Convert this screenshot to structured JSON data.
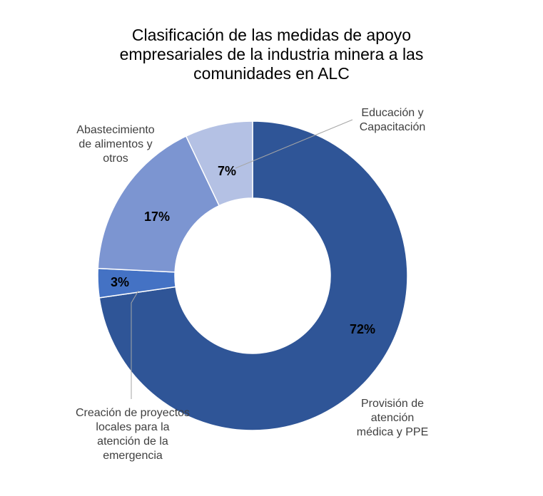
{
  "chart_data": {
    "type": "pie",
    "title_lines": [
      "Clasificación de las medidas de apoyo",
      "empresariales de la industria minera a las",
      "comunidades en ALC"
    ],
    "slices": [
      {
        "label_lines": [
          "Provisión de",
          "atención",
          "médica y PPE"
        ],
        "value": 72,
        "value_label": "72%",
        "color": "#2F5597"
      },
      {
        "label_lines": [
          "Creación de proyectos",
          "locales para la",
          "atención de la",
          "emergencia"
        ],
        "value": 3,
        "value_label": "3%",
        "color": "#4472C4"
      },
      {
        "label_lines": [
          "Abastecimiento",
          "de alimentos y",
          "otros"
        ],
        "value": 17,
        "value_label": "17%",
        "color": "#7C95D1"
      },
      {
        "label_lines": [
          "Educación y",
          "Capacitación"
        ],
        "value": 7,
        "value_label": "7%",
        "color": "#B4C1E4"
      }
    ]
  }
}
